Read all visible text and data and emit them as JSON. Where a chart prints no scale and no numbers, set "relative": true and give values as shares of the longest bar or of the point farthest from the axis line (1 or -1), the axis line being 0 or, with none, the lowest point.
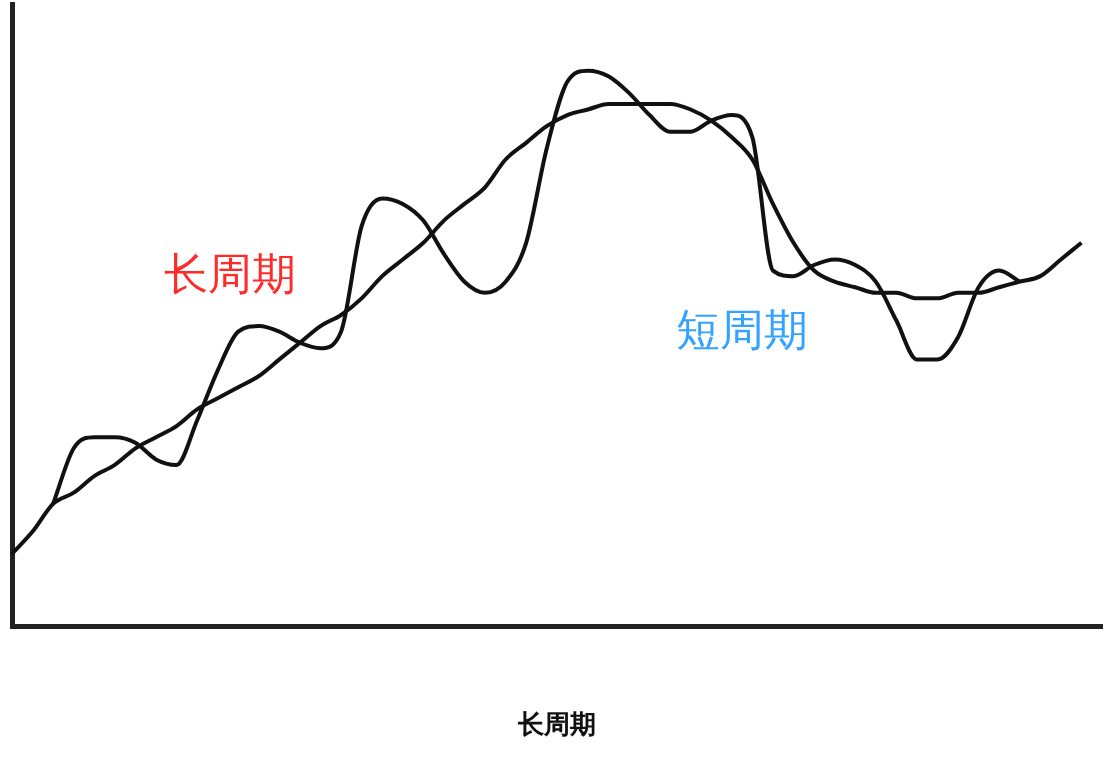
{
  "chart_data": {
    "type": "line",
    "relative": true,
    "xlabel": "长周期",
    "legend": false,
    "grid": false,
    "marker": "none",
    "line_style": "solid",
    "categories": [
      null,
      null,
      null,
      null,
      null,
      null,
      null,
      null,
      null,
      null,
      null,
      null,
      null,
      null,
      null,
      null,
      null,
      null,
      null,
      null,
      null,
      null,
      null,
      null,
      null,
      null,
      null,
      null,
      null,
      null,
      null,
      null,
      null,
      null,
      null,
      null,
      null,
      null,
      null,
      null,
      null,
      null,
      null,
      null,
      null,
      null,
      null,
      null,
      null,
      null,
      null,
      null,
      null,
      null
    ],
    "series": [
      {
        "name": "长周期",
        "color": "#111111",
        "values": [
          0.13,
          0.17,
          0.22,
          0.24,
          0.27,
          0.29,
          0.32,
          0.34,
          0.36,
          0.39,
          0.41,
          0.43,
          0.45,
          0.48,
          0.51,
          0.54,
          0.56,
          0.59,
          0.63,
          0.66,
          0.69,
          0.73,
          0.76,
          0.79,
          0.84,
          0.87,
          0.9,
          0.92,
          0.93,
          0.94,
          0.94,
          0.94,
          0.94,
          0.93,
          0.91,
          0.88,
          0.84,
          0.76,
          0.69,
          0.64,
          0.62,
          0.61,
          0.6,
          0.6,
          0.59,
          0.59,
          0.6,
          0.6,
          0.61,
          0.62,
          0.63,
          0.66,
          0.69,
          null
        ]
      },
      {
        "name": "短周期",
        "color": "#111111",
        "values": [
          null,
          null,
          0.22,
          0.32,
          0.34,
          0.34,
          0.33,
          0.3,
          0.29,
          0.37,
          0.46,
          0.53,
          0.54,
          0.53,
          0.51,
          0.5,
          0.53,
          0.72,
          0.77,
          0.76,
          0.73,
          0.67,
          0.62,
          0.6,
          0.62,
          0.69,
          0.86,
          0.98,
          1.0,
          0.99,
          0.96,
          0.92,
          0.89,
          0.89,
          0.91,
          0.92,
          0.88,
          0.64,
          0.63,
          0.65,
          0.66,
          0.65,
          0.62,
          0.55,
          0.48,
          0.48,
          0.52,
          0.61,
          0.64,
          0.62,
          null,
          null,
          null,
          null
        ]
      }
    ]
  }
}
